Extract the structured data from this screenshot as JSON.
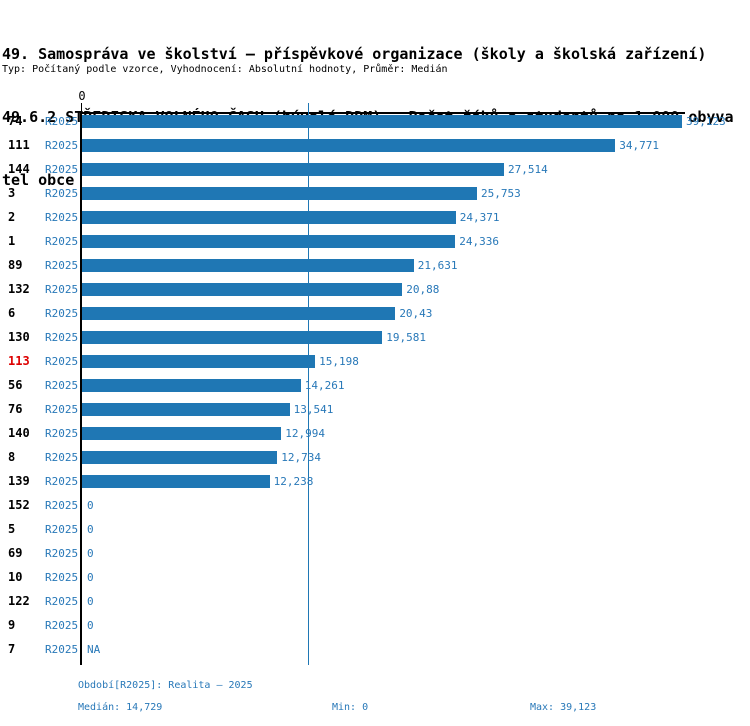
{
  "header": {
    "title_lines": [
      "49. Samospráva ve školství – příspěvkové organizace (školy a školská zařízení)",
      "49.6.2 STŘEDISKA VOLNÉHO ČASU (bývalé DDM) – Počet žáků a studentů na 1 000 obyva",
      "tel obce"
    ],
    "meta": "Typ: Počítaný podle vzorce, Vyhodnocení: Absolutní hodnoty, Průměr: Medián"
  },
  "chart_data": {
    "type": "bar",
    "orientation": "horizontal",
    "axis_zero_label": "0",
    "xlim": [
      0,
      39.123
    ],
    "median_value": 14.729,
    "max_value": 39.123,
    "min_value": 0,
    "grid": false,
    "legend": "none",
    "series_name": "R2025",
    "rows": [
      {
        "id": "74",
        "period": "R2025",
        "value": 39.123,
        "display": "39,123",
        "highlight": false
      },
      {
        "id": "111",
        "period": "R2025",
        "value": 34.771,
        "display": "34,771",
        "highlight": false
      },
      {
        "id": "144",
        "period": "R2025",
        "value": 27.514,
        "display": "27,514",
        "highlight": false
      },
      {
        "id": "3",
        "period": "R2025",
        "value": 25.753,
        "display": "25,753",
        "highlight": false
      },
      {
        "id": "2",
        "period": "R2025",
        "value": 24.371,
        "display": "24,371",
        "highlight": false
      },
      {
        "id": "1",
        "period": "R2025",
        "value": 24.336,
        "display": "24,336",
        "highlight": false
      },
      {
        "id": "89",
        "period": "R2025",
        "value": 21.631,
        "display": "21,631",
        "highlight": false
      },
      {
        "id": "132",
        "period": "R2025",
        "value": 20.88,
        "display": "20,88",
        "highlight": false
      },
      {
        "id": "6",
        "period": "R2025",
        "value": 20.43,
        "display": "20,43",
        "highlight": false
      },
      {
        "id": "130",
        "period": "R2025",
        "value": 19.581,
        "display": "19,581",
        "highlight": false
      },
      {
        "id": "113",
        "period": "R2025",
        "value": 15.198,
        "display": "15,198",
        "highlight": true
      },
      {
        "id": "56",
        "period": "R2025",
        "value": 14.261,
        "display": "14,261",
        "highlight": false
      },
      {
        "id": "76",
        "period": "R2025",
        "value": 13.541,
        "display": "13,541",
        "highlight": false
      },
      {
        "id": "140",
        "period": "R2025",
        "value": 12.994,
        "display": "12,994",
        "highlight": false
      },
      {
        "id": "8",
        "period": "R2025",
        "value": 12.734,
        "display": "12,734",
        "highlight": false
      },
      {
        "id": "139",
        "period": "R2025",
        "value": 12.238,
        "display": "12,238",
        "highlight": false
      },
      {
        "id": "152",
        "period": "R2025",
        "value": 0,
        "display": "0",
        "highlight": false
      },
      {
        "id": "5",
        "period": "R2025",
        "value": 0,
        "display": "0",
        "highlight": false
      },
      {
        "id": "69",
        "period": "R2025",
        "value": 0,
        "display": "0",
        "highlight": false
      },
      {
        "id": "10",
        "period": "R2025",
        "value": 0,
        "display": "0",
        "highlight": false
      },
      {
        "id": "122",
        "period": "R2025",
        "value": 0,
        "display": "0",
        "highlight": false
      },
      {
        "id": "9",
        "period": "R2025",
        "value": 0,
        "display": "0",
        "highlight": false
      },
      {
        "id": "7",
        "period": "R2025",
        "value": null,
        "display": "NA",
        "highlight": false
      }
    ],
    "colors": {
      "bar_blue": "#1f77b4",
      "text_blue": "#2878b8",
      "highlight_red": "#dd0000",
      "axis_black": "#000000"
    }
  },
  "footer": {
    "period": "Období[R2025]: Realita – 2025",
    "median": "Medián: 14,729",
    "min": "Min: 0",
    "max": "Max: 39,123",
    "median_display": "14,729",
    "min_display": "0",
    "max_display": "39,123"
  }
}
